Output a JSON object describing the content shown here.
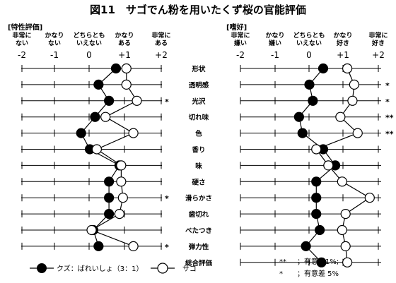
{
  "title": "図11　サゴでん粉を用いたくず桜の官能評価",
  "legend": {
    "series_a": "クズ：ばれいしょ（3：1）",
    "series_b": "サゴ"
  },
  "notes": {
    "line1_mark": "**",
    "line1_text": "；有意差1%;",
    "line2_mark": "*",
    "line2_text": "；有意差 5%"
  },
  "chart_data": [
    {
      "type": "line",
      "section_label": "[特性評価]",
      "headers": [
        "非常に\nない",
        "かなり\nない",
        "どちらとも\nいえない",
        "かなり\nある",
        "非常に\nある"
      ],
      "ticks": [
        "-2",
        "-1",
        "0",
        "+1",
        "+2"
      ],
      "xlim": [
        -2,
        2
      ],
      "categories": [
        "形状",
        "透明感",
        "光沢",
        "切れ味",
        "色",
        "香り",
        "味",
        "硬さ",
        "滑らかさ",
        "歯切れ",
        "べたつき",
        "弾力性"
      ],
      "significance": [
        "",
        "",
        "*",
        "",
        "",
        "",
        "",
        "",
        "*",
        "",
        "",
        "*"
      ],
      "series": [
        {
          "name": "クズ：ばれいしょ（3：1）",
          "marker": "filled",
          "values": [
            0.7,
            0.2,
            0.5,
            0.1,
            -0.3,
            -0.05,
            0.8,
            0.5,
            0.5,
            0.5,
            0.05,
            0.2
          ]
        },
        {
          "name": "サゴ",
          "marker": "open",
          "values": [
            1.0,
            1.0,
            1.3,
            0.4,
            1.2,
            0.15,
            0.85,
            0.85,
            0.9,
            0.8,
            0.0,
            1.2
          ]
        }
      ]
    },
    {
      "type": "line",
      "section_label": "[嗜好]",
      "headers": [
        "非常に\n嫌い",
        "かなり\n嫌い",
        "どちらとも\nいえない",
        "かなり\n好き",
        "非常に\n好き"
      ],
      "ticks": [
        "-2",
        "-1",
        "0",
        "+1",
        "+2"
      ],
      "xlim": [
        -2,
        2
      ],
      "categories": [
        "形状",
        "透明感",
        "光沢",
        "切れ味",
        "色",
        "香り",
        "味",
        "硬さ",
        "滑らかさ",
        "歯切れ",
        "べたつき",
        "弾力性",
        "総合評価"
      ],
      "significance": [
        "",
        "*",
        "*",
        "**",
        "**",
        "",
        "",
        "",
        "",
        "",
        "",
        "",
        ""
      ],
      "series": [
        {
          "name": "クズ：ばれいしょ（3：1）",
          "marker": "filled",
          "values": [
            0.4,
            0.0,
            0.1,
            -0.3,
            -0.2,
            0.4,
            0.75,
            0.2,
            0.2,
            0.2,
            0.3,
            -0.1,
            0.35
          ]
        },
        {
          "name": "サゴ",
          "marker": "open",
          "values": [
            1.1,
            1.3,
            1.25,
            0.9,
            1.4,
            0.2,
            0.55,
            0.95,
            1.75,
            1.05,
            0.95,
            1.05,
            1.1
          ]
        }
      ]
    }
  ]
}
